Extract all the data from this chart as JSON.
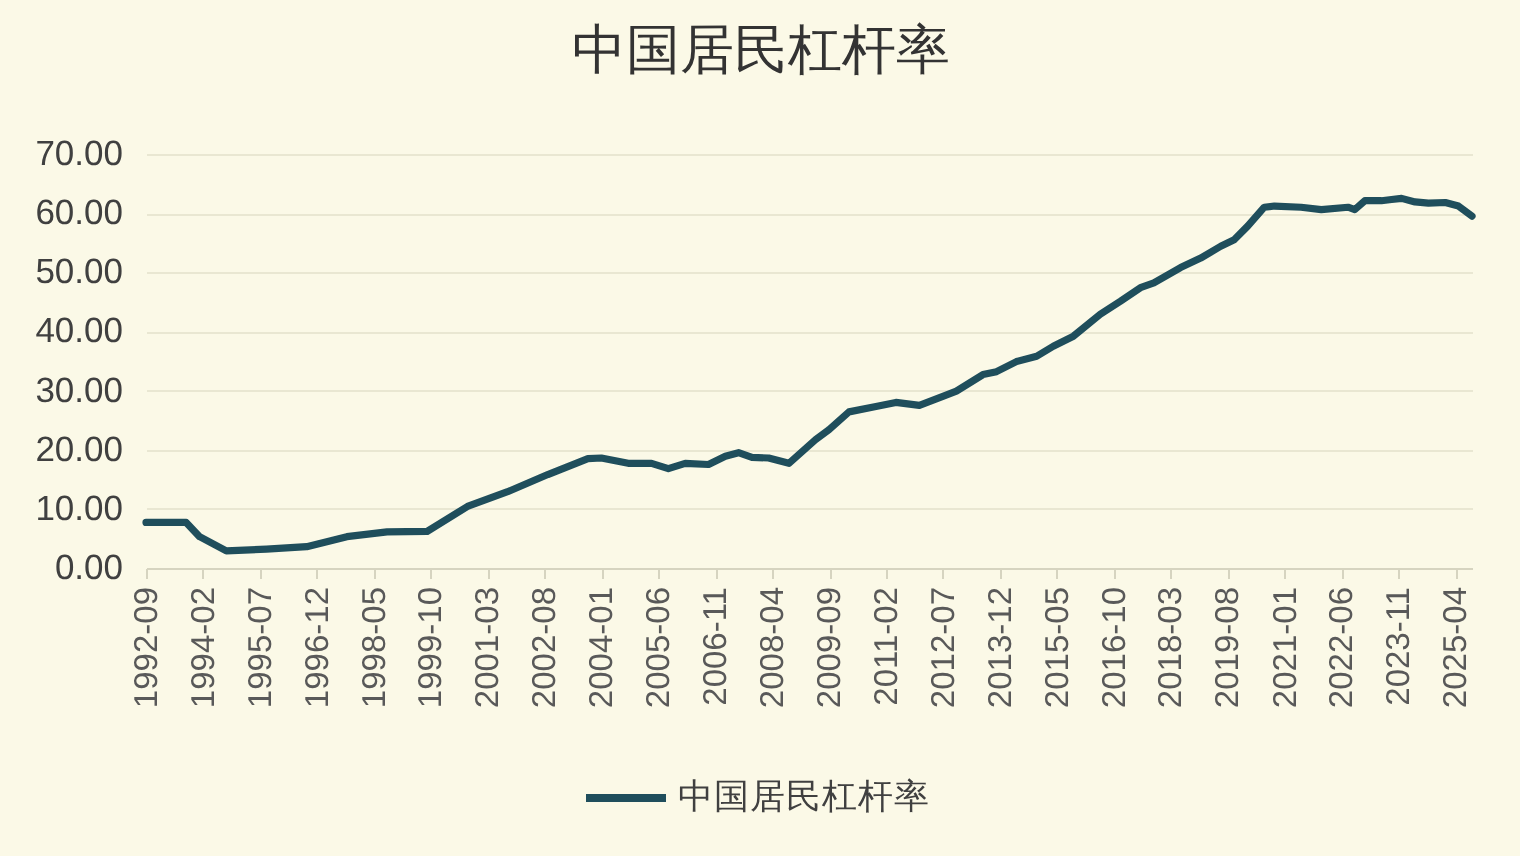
{
  "chart_data": {
    "type": "line",
    "title": "中国居民杠杆率",
    "x": [
      "1992-09",
      "1993-09",
      "1994-01",
      "1994-09",
      "1995-09",
      "1996-09",
      "1997-09",
      "1998-09",
      "1999-09",
      "2000-09",
      "2001-09",
      "2002-09",
      "2003-09",
      "2004-01",
      "2004-09",
      "2005-04",
      "2005-09",
      "2006-02",
      "2006-09",
      "2007-02",
      "2007-06",
      "2007-10",
      "2008-03",
      "2008-09",
      "2009-05",
      "2009-09",
      "2010-03",
      "2010-11",
      "2011-05",
      "2011-12",
      "2012-07",
      "2012-11",
      "2013-07",
      "2013-11",
      "2014-05",
      "2014-11",
      "2015-04",
      "2015-10",
      "2016-06",
      "2016-12",
      "2017-06",
      "2017-10",
      "2018-06",
      "2018-12",
      "2019-06",
      "2019-10",
      "2020-02",
      "2020-07",
      "2020-10",
      "2021-06",
      "2021-12",
      "2022-08",
      "2022-10",
      "2023-01",
      "2023-06",
      "2023-09",
      "2023-12",
      "2024-04",
      "2024-08",
      "2025-01",
      "2025-05",
      "2025-09"
    ],
    "series": [
      {
        "name": "中国居民杠杆率",
        "color": "#1f4e5c",
        "values": [
          7.7,
          7.7,
          5.3,
          2.9,
          3.2,
          3.6,
          5.3,
          6.1,
          6.2,
          10.4,
          12.9,
          15.8,
          18.5,
          18.6,
          17.7,
          17.7,
          16.8,
          17.7,
          17.5,
          18.9,
          19.5,
          18.7,
          18.6,
          17.7,
          21.7,
          23.4,
          26.4,
          27.3,
          28.0,
          27.5,
          29.0,
          29.9,
          32.7,
          33.2,
          34.9,
          35.8,
          37.5,
          39.2,
          42.9,
          45.1,
          47.4,
          48.2,
          50.8,
          52.4,
          54.4,
          55.5,
          57.8,
          61.0,
          61.2,
          61.0,
          60.6,
          61.0,
          60.6,
          62.1,
          62.1,
          62.3,
          62.5,
          61.9,
          61.7,
          61.8,
          61.2,
          59.5
        ]
      }
    ],
    "xlim": [
      "1992-09",
      "2025-09"
    ],
    "xticks": [
      "1992-09",
      "1994-02",
      "1995-07",
      "1996-12",
      "1998-05",
      "1999-10",
      "2001-03",
      "2002-08",
      "2004-01",
      "2005-06",
      "2006-11",
      "2008-04",
      "2009-09",
      "2011-02",
      "2012-07",
      "2013-12",
      "2015-05",
      "2016-10",
      "2018-03",
      "2019-08",
      "2021-01",
      "2022-06",
      "2023-11",
      "2025-04"
    ],
    "ylim": [
      0,
      70
    ],
    "yticks": [
      {
        "value": 0,
        "label": "0.00"
      },
      {
        "value": 10,
        "label": "10.00"
      },
      {
        "value": 20,
        "label": "20.00"
      },
      {
        "value": 30,
        "label": "30.00"
      },
      {
        "value": 40,
        "label": "40.00"
      },
      {
        "value": 50,
        "label": "50.00"
      },
      {
        "value": 60,
        "label": "60.00"
      },
      {
        "value": 70,
        "label": "70.00"
      }
    ],
    "grid": "y",
    "legend": "bottom"
  }
}
